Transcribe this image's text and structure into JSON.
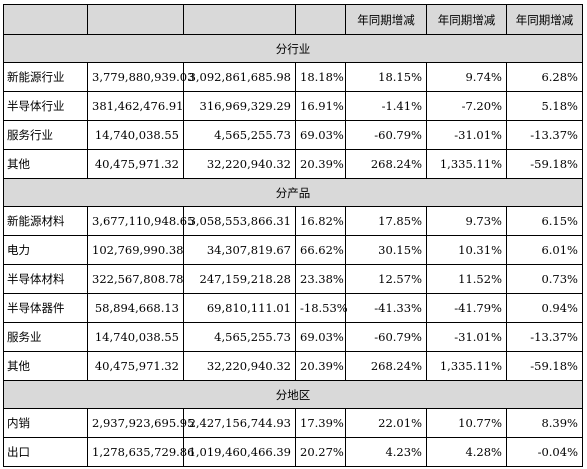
{
  "header": [
    "",
    "",
    "",
    "",
    "年同期增减",
    "年同期增减",
    "年同期增减"
  ],
  "sections": [
    {
      "title": "分行业",
      "rows": [
        [
          "新能源行业",
          "3,779,880,939.03",
          "3,092,861,685.98",
          "18.18%",
          "18.15%",
          "9.74%",
          "6.28%"
        ],
        [
          "半导体行业",
          "381,462,476.91",
          "316,969,329.29",
          "16.91%",
          "-1.41%",
          "-7.20%",
          "5.18%"
        ],
        [
          "服务行业",
          "14,740,038.55",
          "4,565,255.73",
          "69.03%",
          "-60.79%",
          "-31.01%",
          "-13.37%"
        ],
        [
          "其他",
          "40,475,971.32",
          "32,220,940.32",
          "20.39%",
          "268.24%",
          "1,335.11%",
          "-59.18%"
        ]
      ]
    },
    {
      "title": "分产品",
      "rows": [
        [
          "新能源材料",
          "3,677,110,948.65",
          "3,058,553,866.31",
          "16.82%",
          "17.85%",
          "9.73%",
          "6.15%"
        ],
        [
          "电力",
          "102,769,990.38",
          "34,307,819.67",
          "66.62%",
          "30.15%",
          "10.31%",
          "6.01%"
        ],
        [
          "半导体材料",
          "322,567,808.78",
          "247,159,218.28",
          "23.38%",
          "12.57%",
          "11.52%",
          "0.73%"
        ],
        [
          "半导体器件",
          "58,894,668.13",
          "69,810,111.01",
          "-18.53%",
          "-41.33%",
          "-41.79%",
          "0.94%"
        ],
        [
          "服务业",
          "14,740,038.55",
          "4,565,255.73",
          "69.03%",
          "-60.79%",
          "-31.01%",
          "-13.37%"
        ],
        [
          "其他",
          "40,475,971.32",
          "32,220,940.32",
          "20.39%",
          "268.24%",
          "1,335.11%",
          "-59.18%"
        ]
      ]
    },
    {
      "title": "分地区",
      "rows": [
        [
          "内销",
          "2,937,923,695.95",
          "2,427,156,744.93",
          "17.39%",
          "22.01%",
          "10.77%",
          "8.39%"
        ],
        [
          "出口",
          "1,278,635,729.86",
          "1,019,460,466.39",
          "20.27%",
          "4.23%",
          "4.28%",
          "-0.04%"
        ]
      ]
    }
  ]
}
